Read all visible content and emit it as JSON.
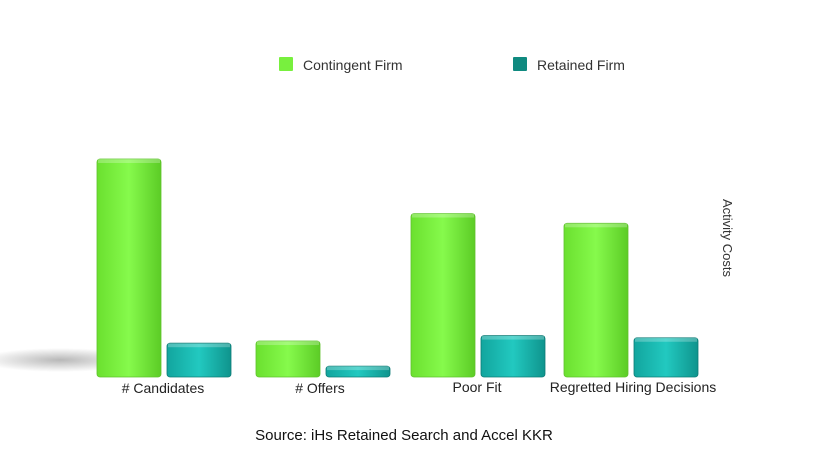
{
  "chart_data": {
    "type": "bar",
    "categories": [
      "# Candidates",
      "# Offers",
      "Poor Fit",
      "Regretted Hiring Decisions"
    ],
    "series": [
      {
        "name": "Contingent Firm",
        "values": [
          100,
          16.5,
          75,
          70.5
        ]
      },
      {
        "name": "Retained Firm",
        "values": [
          15.5,
          5,
          19,
          18
        ]
      }
    ],
    "ylabel": "Activity Costs",
    "ylim": [
      0,
      100
    ],
    "grid": false,
    "legend_position": "top-center",
    "colors": {
      "Contingent Firm": "#7ef542",
      "Retained Firm": "#1ab8b0"
    },
    "legend_swatch_colors": {
      "Contingent Firm": "#78f03e",
      "Retained Firm": "#108a80"
    },
    "source": "Source: iHs Retained Search and Accel KKR"
  }
}
